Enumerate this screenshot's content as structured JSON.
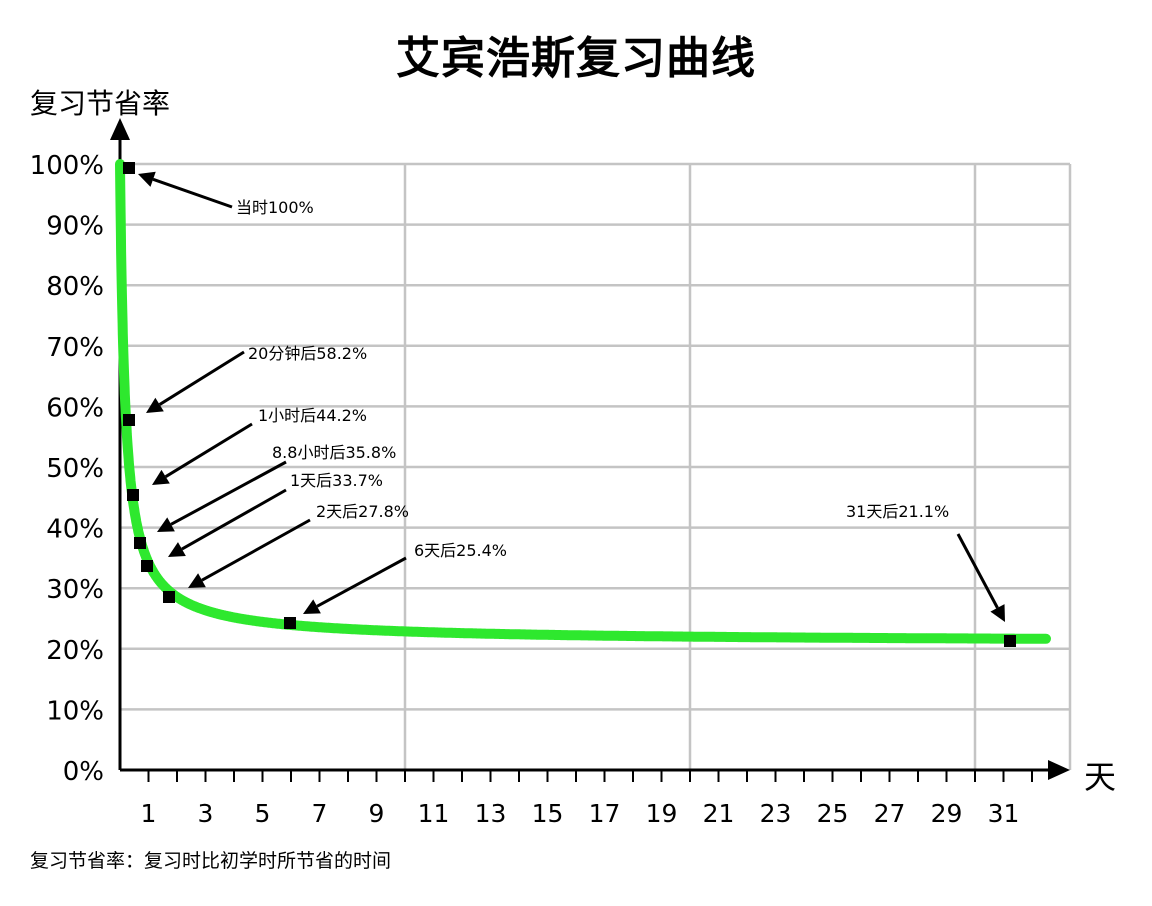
{
  "chart_data": {
    "type": "line",
    "title": "艾宾浩斯复习曲线",
    "ylabel": "复习节省率",
    "xlabel": "天",
    "ylim": [
      0,
      100
    ],
    "xlim": [
      0,
      33
    ],
    "grid": true,
    "y_ticks": [
      "0%",
      "10%",
      "20%",
      "30%",
      "40%",
      "50%",
      "60%",
      "70%",
      "80%",
      "90%",
      "100%"
    ],
    "x_ticks": [
      "1",
      "3",
      "5",
      "7",
      "9",
      "11",
      "13",
      "15",
      "17",
      "19",
      "21",
      "23",
      "25",
      "27",
      "29",
      "31"
    ],
    "series": [
      {
        "color": "#2ee82e",
        "points": [
          {
            "x": 0.33,
            "y": 100,
            "label": "当时100%"
          },
          {
            "x": 0.33,
            "y": 58.2,
            "label": "20分钟后58.2%"
          },
          {
            "x": 0.5,
            "y": 44.2,
            "label": "1小时后44.2%"
          },
          {
            "x": 0.75,
            "y": 35.8,
            "label": "8.8小时后35.8%"
          },
          {
            "x": 1,
            "y": 33.7,
            "label": "1天后33.7%"
          },
          {
            "x": 1.75,
            "y": 27.8,
            "label": "2天后27.8%"
          },
          {
            "x": 6,
            "y": 25.4,
            "label": "6天后25.4%"
          },
          {
            "x": 31,
            "y": 21.1,
            "label": "31天后21.1%"
          }
        ]
      }
    ],
    "footnote": "复习节省率：复习时比初学时所节省的时间"
  }
}
